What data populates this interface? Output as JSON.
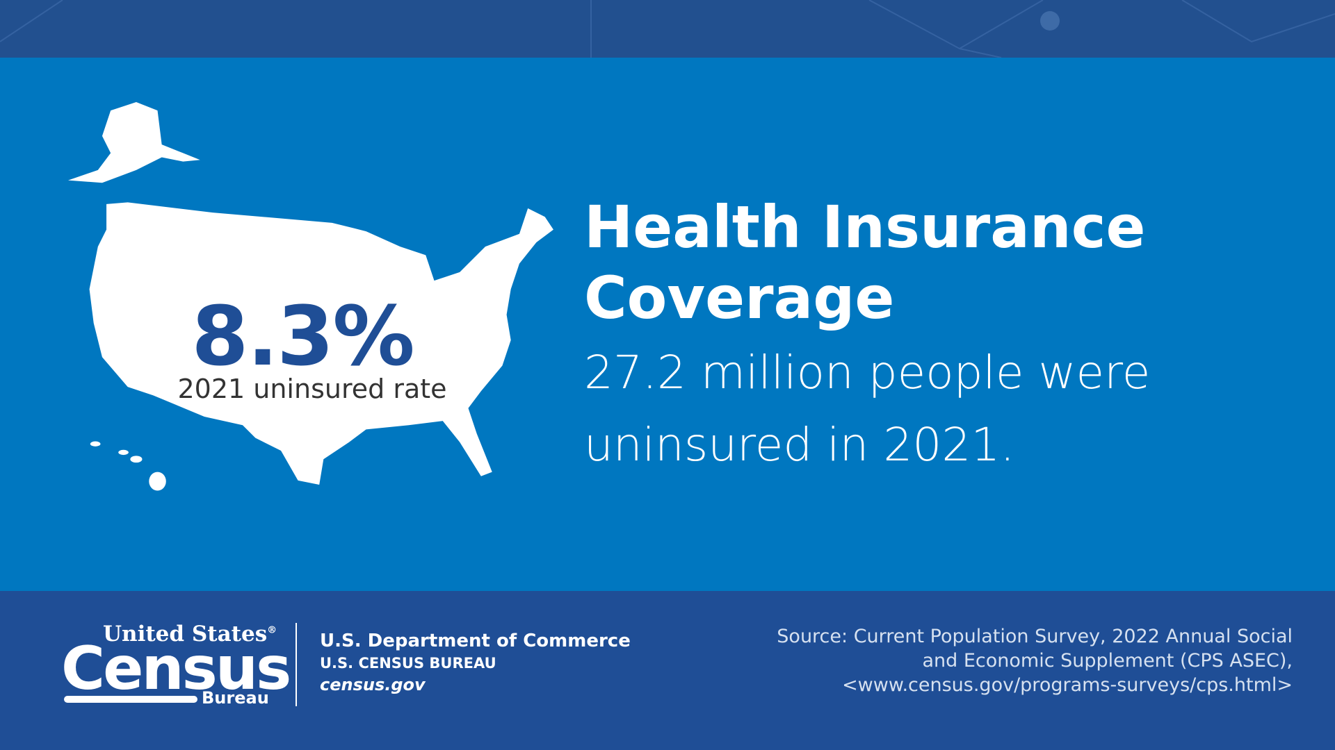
{
  "stat": {
    "value": "8.3%",
    "label": "2021 uninsured rate"
  },
  "headline": {
    "title_line1": "Health Insurance",
    "title_line2": "Coverage",
    "body_line1": "27.2 million people were",
    "body_line2": "uninsured in 2021."
  },
  "footer": {
    "logo_top": "United States",
    "logo_mark": "®",
    "logo_main": "Census",
    "logo_bottom": "Bureau",
    "dept": "U.S. Department of Commerce",
    "bureau": "U.S. CENSUS BUREAU",
    "site": "census.gov",
    "source_lines": [
      "Source: Current Population Survey, 2022 Annual Social",
      "and Economic Supplement (CPS ASEC),",
      "<www.census.gov/programs-surveys/cps.html>"
    ]
  }
}
